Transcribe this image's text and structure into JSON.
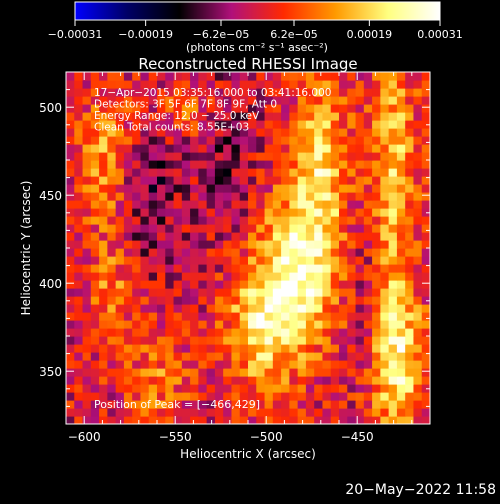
{
  "chart_data": {
    "type": "heatmap",
    "title": "Reconstructed RHESSI Image",
    "xlabel": "Heliocentric X (arcsec)",
    "ylabel": "Heliocentric Y (arcsec)",
    "xlim": [
      -610,
      -410
    ],
    "ylim": [
      320,
      520
    ],
    "x_ticks": [
      -600,
      -550,
      -500,
      -450
    ],
    "x_tick_labels": [
      "−600",
      "−550",
      "−500",
      "−450"
    ],
    "y_ticks": [
      350,
      400,
      450,
      500
    ],
    "y_tick_labels": [
      "350",
      "400",
      "450",
      "500"
    ],
    "colorbar": {
      "min": -0.00031,
      "max": 0.00031,
      "ticks": [
        -0.00031,
        -0.00019,
        -6.2e-05,
        6.2e-05,
        0.00019,
        0.00031
      ],
      "tick_labels": [
        "−0.00031",
        "−0.00019",
        "−6.2e−05",
        "6.2e−05",
        "0.00019",
        "0.00031"
      ],
      "unit_label": "(photons cm⁻² s⁻¹ asec⁻²)",
      "colormap": [
        "#0000ff",
        "#000066",
        "#000000",
        "#b0107a",
        "#ff2a00",
        "#ff9a00",
        "#ffff80",
        "#ffffff"
      ]
    },
    "annotations": [
      "17−Apr−2015 03:35:16.000 to 03:41:16.000",
      "Detectors: 3F 5F 6F 7F 8F 9F, Att 0",
      "Energy Range: 12.0 − 25.0 keV",
      "Clean     Total counts: 8.55E+03"
    ],
    "peak_label": "Position of Peak = [−466,429]",
    "peak_position": [
      -466,
      429
    ],
    "grid": false
  },
  "footer": {
    "timestamp": "20−May−2022 11:58"
  }
}
